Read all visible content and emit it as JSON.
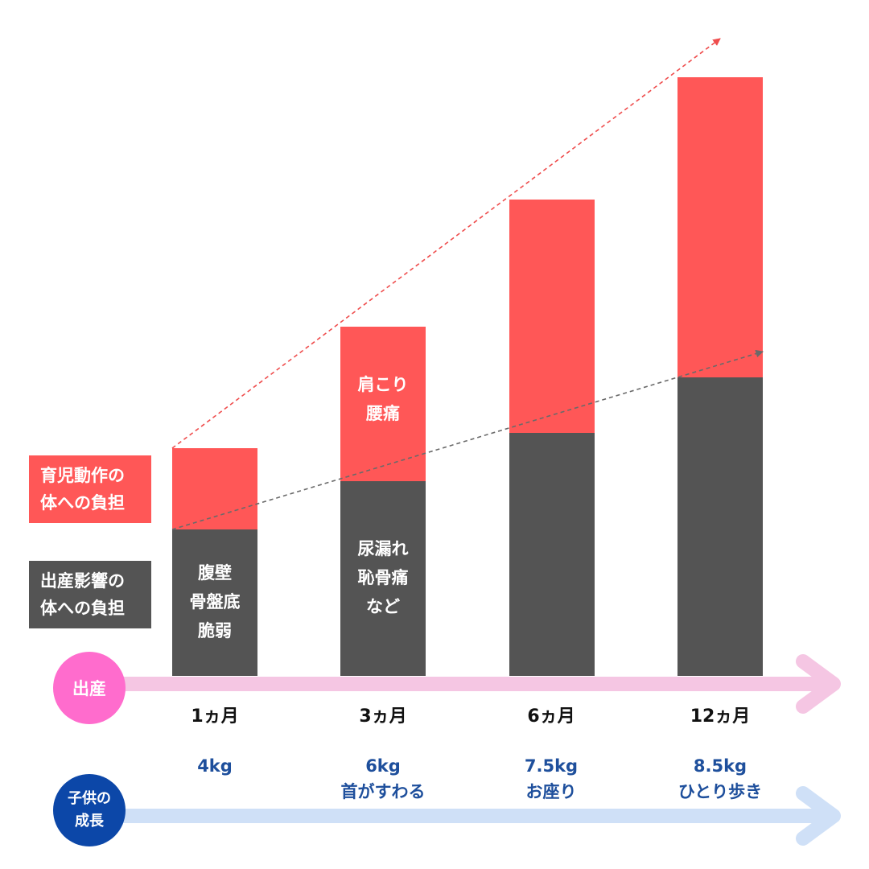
{
  "legend": {
    "childcare": [
      "育児動作の",
      "体への負担"
    ],
    "childbirth": [
      "出産影響の",
      "体への負担"
    ]
  },
  "badges": {
    "birth": "出産",
    "child": [
      "子供の",
      "成長"
    ]
  },
  "bar_labels": {
    "m1_bottom": [
      "腹壁",
      "骨盤底",
      "脆弱"
    ],
    "m3_top": [
      "肩こり",
      "腰痛"
    ],
    "m3_bottom": [
      "尿漏れ",
      "恥骨痛",
      "など"
    ]
  },
  "growth": [
    [
      "4kg"
    ],
    [
      "6kg",
      "首がすわる"
    ],
    [
      "7.5kg",
      "お座り"
    ],
    [
      "8.5kg",
      "ひとり歩き"
    ]
  ],
  "colors": {
    "childcare": "#ff5757",
    "childbirth": "#545454",
    "birth_axis": "#f5c6e3",
    "growth_axis": "#cfe0f7",
    "birth_badge": "#ff6ccd",
    "growth_badge": "#0c47a8"
  },
  "chart_data": {
    "type": "bar",
    "stacked": true,
    "categories": [
      "1ヵ月",
      "3ヵ月",
      "6ヵ月",
      "12ヵ月"
    ],
    "series": [
      {
        "name": "出産影響の体への負担",
        "values": [
          182,
          242,
          302,
          371
        ],
        "color": "#545454"
      },
      {
        "name": "育児動作の体への負担",
        "values": [
          101,
          192,
          290,
          373
        ],
        "color": "#ff5757"
      }
    ],
    "ylim": [
      0,
      760
    ],
    "trend_lines": true
  }
}
